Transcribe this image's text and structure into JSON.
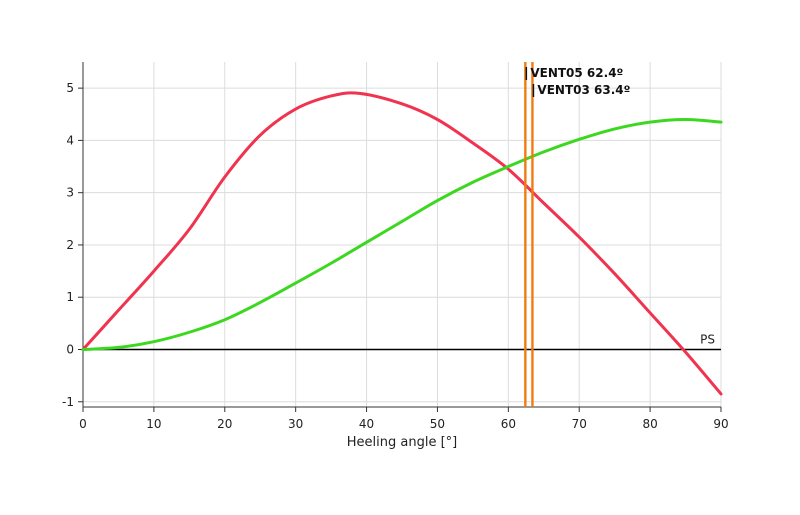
{
  "chart_data": {
    "type": "line",
    "title": "",
    "xlabel": "Heeling angle [°]",
    "ylabel": "",
    "xlim": [
      0,
      90
    ],
    "ylim": [
      -1.1,
      5.5
    ],
    "x_ticks": [
      0,
      10,
      20,
      30,
      40,
      50,
      60,
      70,
      80,
      90
    ],
    "y_ticks": [
      -1,
      0,
      1,
      2,
      3,
      4,
      5
    ],
    "grid": true,
    "legend": "none",
    "series": [
      {
        "color": "#f0334f",
        "x": [
          0,
          5,
          10,
          15,
          20,
          25,
          30,
          35,
          39,
          45,
          50,
          55,
          60,
          65,
          70,
          75,
          80,
          85,
          90
        ],
        "y": [
          0,
          0.75,
          1.5,
          2.3,
          3.3,
          4.1,
          4.6,
          4.85,
          4.9,
          4.7,
          4.4,
          3.95,
          3.45,
          2.8,
          2.15,
          1.45,
          0.7,
          -0.05,
          -0.85
        ]
      },
      {
        "color": "#3cd820",
        "x": [
          0,
          5,
          10,
          15,
          20,
          25,
          30,
          35,
          40,
          45,
          50,
          55,
          60,
          65,
          70,
          75,
          80,
          85,
          90
        ],
        "y": [
          0,
          0.04,
          0.15,
          0.33,
          0.57,
          0.9,
          1.27,
          1.65,
          2.05,
          2.45,
          2.85,
          3.2,
          3.5,
          3.78,
          4.02,
          4.22,
          4.35,
          4.4,
          4.35
        ]
      }
    ],
    "reference_line": {
      "label": "PS",
      "y": 0,
      "color": "#000000"
    },
    "markers": [
      {
        "label": "VENT05 62.4º",
        "x": 62.4,
        "color": "#f07c10"
      },
      {
        "label": "VENT03 63.4º",
        "x": 63.4,
        "color": "#f07c10"
      }
    ]
  }
}
